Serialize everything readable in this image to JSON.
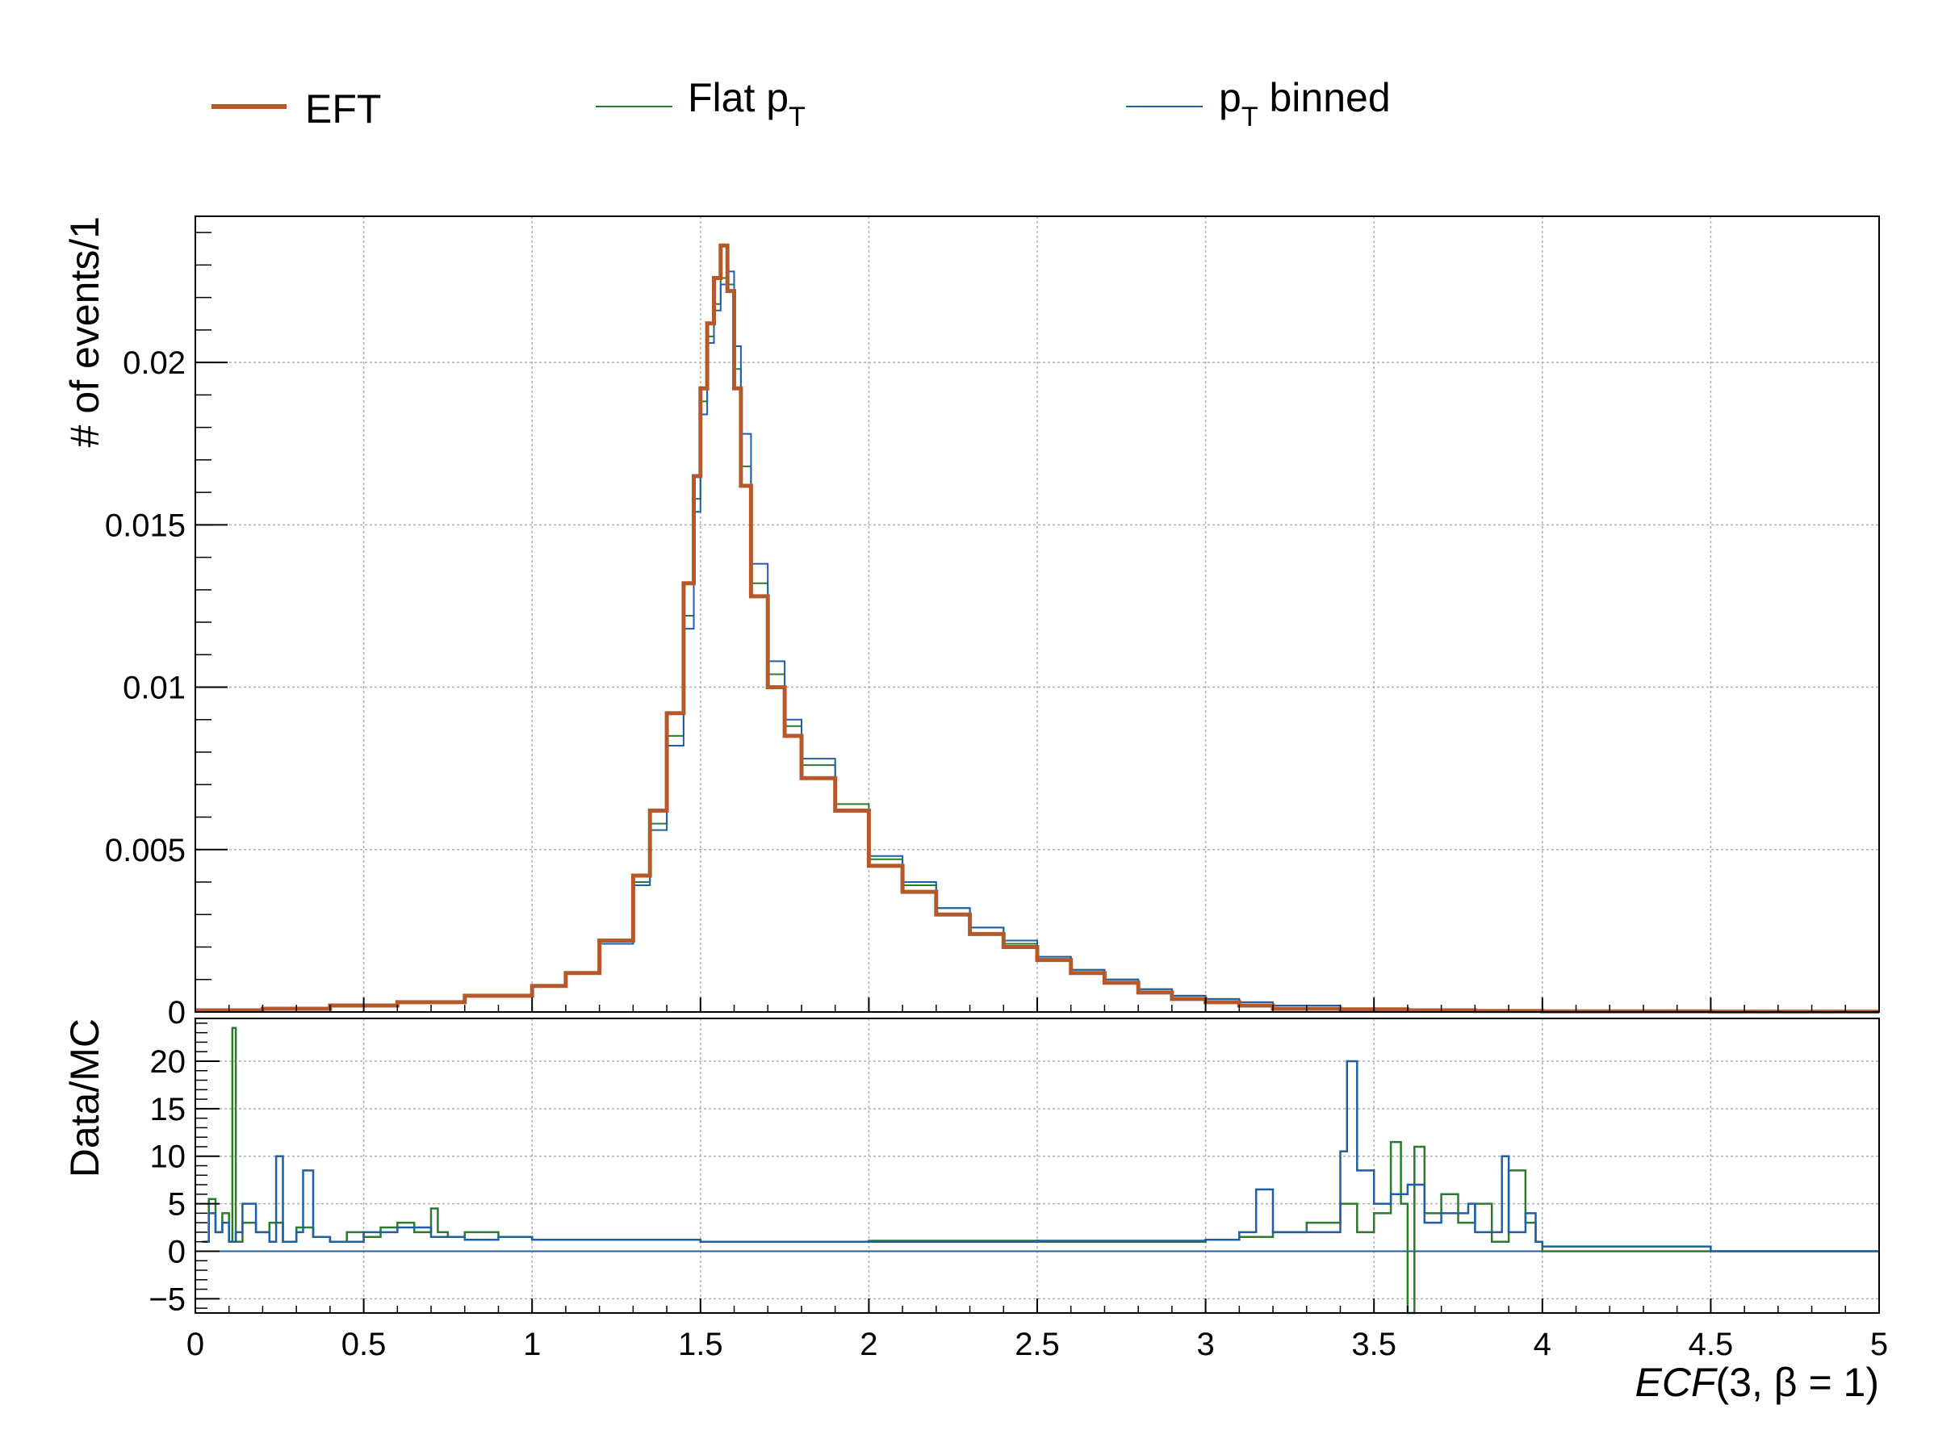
{
  "chart_data": [
    {
      "panel": "main",
      "type": "line",
      "ylabel": "# of events/1",
      "xlim": [
        0,
        5
      ],
      "ylim": [
        0,
        0.0245
      ],
      "grid": true,
      "legend_position": "top, above plot",
      "y_ticks": [
        {
          "value": 0,
          "label": "0"
        },
        {
          "value": 0.005,
          "label": "0.005"
        },
        {
          "value": 0.01,
          "label": "0.01"
        },
        {
          "value": 0.015,
          "label": "0.015"
        },
        {
          "value": 0.02,
          "label": "0.02"
        }
      ],
      "series": [
        {
          "name": "EFT",
          "color": "#b5582a",
          "line_width": 5,
          "x": [
            0,
            0.2,
            0.4,
            0.6,
            0.8,
            1.0,
            1.1,
            1.2,
            1.3,
            1.35,
            1.4,
            1.45,
            1.48,
            1.5,
            1.52,
            1.54,
            1.56,
            1.58,
            1.6,
            1.62,
            1.65,
            1.7,
            1.75,
            1.8,
            1.9,
            2.0,
            2.1,
            2.2,
            2.3,
            2.4,
            2.5,
            2.6,
            2.7,
            2.8,
            2.9,
            3.0,
            3.1,
            3.2,
            3.4,
            3.6,
            3.8,
            4.0,
            4.5,
            5.0
          ],
          "y": [
            5e-05,
            0.0001,
            0.0002,
            0.0003,
            0.0005,
            0.0008,
            0.0012,
            0.0022,
            0.0042,
            0.0062,
            0.0092,
            0.0132,
            0.0165,
            0.0192,
            0.0212,
            0.0226,
            0.0236,
            0.0222,
            0.0192,
            0.0162,
            0.0128,
            0.01,
            0.0085,
            0.0072,
            0.0062,
            0.0045,
            0.0037,
            0.003,
            0.0024,
            0.002,
            0.0016,
            0.0012,
            0.0009,
            0.0006,
            0.0004,
            0.0003,
            0.0002,
            0.0001,
            8e-05,
            5e-05,
            3e-05,
            2e-05,
            1e-05,
            1e-05
          ]
        },
        {
          "name": "Flat pT",
          "name_main": "Flat p",
          "name_sub": "T",
          "color": "#2c7a2c",
          "line_width": 2,
          "x": [
            0,
            0.2,
            0.4,
            0.6,
            0.8,
            1.0,
            1.1,
            1.2,
            1.3,
            1.35,
            1.4,
            1.45,
            1.48,
            1.5,
            1.52,
            1.54,
            1.56,
            1.58,
            1.6,
            1.62,
            1.65,
            1.7,
            1.75,
            1.8,
            1.9,
            2.0,
            2.1,
            2.2,
            2.3,
            2.4,
            2.5,
            2.6,
            2.7,
            2.8,
            2.9,
            3.0,
            3.1,
            3.2,
            3.4,
            3.6,
            3.8,
            4.0,
            4.5,
            5.0
          ],
          "y": [
            2e-05,
            8e-05,
            0.0002,
            0.0003,
            0.0005,
            0.0008,
            0.0012,
            0.0021,
            0.004,
            0.0058,
            0.0085,
            0.0122,
            0.0158,
            0.0188,
            0.0208,
            0.0218,
            0.0226,
            0.0224,
            0.0198,
            0.0168,
            0.0132,
            0.0104,
            0.0088,
            0.0076,
            0.0064,
            0.0047,
            0.0039,
            0.0032,
            0.0026,
            0.0021,
            0.0017,
            0.0013,
            0.001,
            0.0007,
            0.0005,
            0.0004,
            0.0003,
            0.0002,
            0.0001,
            5e-05,
            3e-05,
            1e-05,
            1e-05,
            1e-05
          ]
        },
        {
          "name": "pT binned",
          "name_main": "p",
          "name_sub": "T",
          "name_suffix": " binned",
          "color": "#1f5fa8",
          "line_width": 2,
          "x": [
            0,
            0.2,
            0.4,
            0.6,
            0.8,
            1.0,
            1.1,
            1.2,
            1.3,
            1.35,
            1.4,
            1.45,
            1.48,
            1.5,
            1.52,
            1.54,
            1.56,
            1.58,
            1.6,
            1.62,
            1.65,
            1.7,
            1.75,
            1.8,
            1.9,
            2.0,
            2.1,
            2.2,
            2.3,
            2.4,
            2.5,
            2.6,
            2.7,
            2.8,
            2.9,
            3.0,
            3.1,
            3.2,
            3.4,
            3.6,
            3.8,
            4.0,
            4.5,
            5.0
          ],
          "y": [
            3e-05,
            8e-05,
            0.0002,
            0.0003,
            0.0005,
            0.0008,
            0.0012,
            0.0021,
            0.0039,
            0.0056,
            0.0082,
            0.0118,
            0.0154,
            0.0184,
            0.0206,
            0.0216,
            0.0224,
            0.0228,
            0.0205,
            0.0178,
            0.0138,
            0.0108,
            0.009,
            0.0078,
            0.0062,
            0.0048,
            0.004,
            0.0032,
            0.0026,
            0.0022,
            0.0017,
            0.0013,
            0.001,
            0.0007,
            0.0005,
            0.0004,
            0.0003,
            0.0002,
            0.0001,
            5e-05,
            3e-05,
            1e-05,
            1e-05,
            1e-05
          ]
        }
      ]
    },
    {
      "panel": "ratio",
      "type": "line",
      "ylabel": "Data/MC",
      "xlabel": "ECF(3, β = 1)",
      "xlabel_italic": "ECF",
      "xlabel_rest": "(3, β = 1)",
      "xlim": [
        0,
        5
      ],
      "ylim": [
        -6.5,
        24.5
      ],
      "grid": true,
      "x_ticks": [
        {
          "value": 0,
          "label": "0"
        },
        {
          "value": 0.5,
          "label": "0.5"
        },
        {
          "value": 1,
          "label": "1"
        },
        {
          "value": 1.5,
          "label": "1.5"
        },
        {
          "value": 2,
          "label": "2"
        },
        {
          "value": 2.5,
          "label": "2.5"
        },
        {
          "value": 3,
          "label": "3"
        },
        {
          "value": 3.5,
          "label": "3.5"
        },
        {
          "value": 4,
          "label": "4"
        },
        {
          "value": 4.5,
          "label": "4.5"
        },
        {
          "value": 5,
          "label": "5"
        }
      ],
      "y_ticks": [
        {
          "value": -5,
          "label": "−5"
        },
        {
          "value": 0,
          "label": "0"
        },
        {
          "value": 5,
          "label": "5"
        },
        {
          "value": 10,
          "label": "10"
        },
        {
          "value": 15,
          "label": "15"
        },
        {
          "value": 20,
          "label": "20"
        }
      ],
      "series": [
        {
          "name": "Flat pT",
          "color": "#2c7a2c",
          "x": [
            0.02,
            0.04,
            0.06,
            0.08,
            0.1,
            0.11,
            0.12,
            0.14,
            0.18,
            0.22,
            0.26,
            0.3,
            0.35,
            0.4,
            0.45,
            0.5,
            0.55,
            0.6,
            0.65,
            0.7,
            0.72,
            0.75,
            0.8,
            0.9,
            1.0,
            1.5,
            2.0,
            2.5,
            3.0,
            3.1,
            3.2,
            3.3,
            3.4,
            3.45,
            3.5,
            3.55,
            3.58,
            3.6,
            3.62,
            3.65,
            3.7,
            3.75,
            3.8,
            3.85,
            3.9,
            3.95,
            3.98,
            4.0,
            4.5,
            5.0
          ],
          "y": [
            1,
            5.5,
            2,
            4,
            1,
            23.5,
            1,
            3,
            2,
            3,
            1,
            2.5,
            1.5,
            1,
            2,
            1.5,
            2.5,
            3,
            2,
            4.5,
            2,
            1.5,
            2,
            1.5,
            1.2,
            1.0,
            1.1,
            1.0,
            1.2,
            1.5,
            2,
            3,
            5,
            2,
            4,
            11.5,
            5,
            -6.5,
            11,
            4,
            6,
            3,
            5,
            1,
            8.5,
            3,
            1,
            0,
            0,
            0
          ]
        },
        {
          "name": "pT binned",
          "color": "#1f5fa8",
          "x": [
            0.02,
            0.04,
            0.06,
            0.08,
            0.1,
            0.12,
            0.14,
            0.18,
            0.22,
            0.24,
            0.26,
            0.3,
            0.32,
            0.35,
            0.4,
            0.5,
            0.6,
            0.7,
            0.8,
            0.9,
            1.0,
            1.5,
            2.0,
            2.5,
            3.0,
            3.1,
            3.15,
            3.2,
            3.3,
            3.4,
            3.42,
            3.45,
            3.5,
            3.55,
            3.6,
            3.65,
            3.7,
            3.78,
            3.8,
            3.88,
            3.9,
            3.95,
            3.98,
            4.0,
            4.06,
            4.5,
            5.0
          ],
          "y": [
            1,
            4,
            2,
            3,
            1,
            2,
            5,
            2,
            1,
            10,
            1,
            2,
            8.5,
            1.5,
            1,
            2,
            2.5,
            1.5,
            1.2,
            1.5,
            1.2,
            1.0,
            1.0,
            1.1,
            1.2,
            2,
            6.5,
            2,
            2,
            10.5,
            20,
            8.5,
            5,
            6,
            7,
            3,
            4,
            5,
            2,
            10,
            2,
            4,
            1,
            0.5,
            0.5,
            0,
            0
          ]
        }
      ]
    }
  ],
  "legend": [
    {
      "label_main": "EFT",
      "label_sub": "",
      "label_suffix": "",
      "color": "#b5582a"
    },
    {
      "label_main": "Flat p",
      "label_sub": "T",
      "label_suffix": "",
      "color": "#2c7a2c"
    },
    {
      "label_main": "p",
      "label_sub": "T",
      "label_suffix": " binned",
      "color": "#1f5fa8"
    }
  ]
}
